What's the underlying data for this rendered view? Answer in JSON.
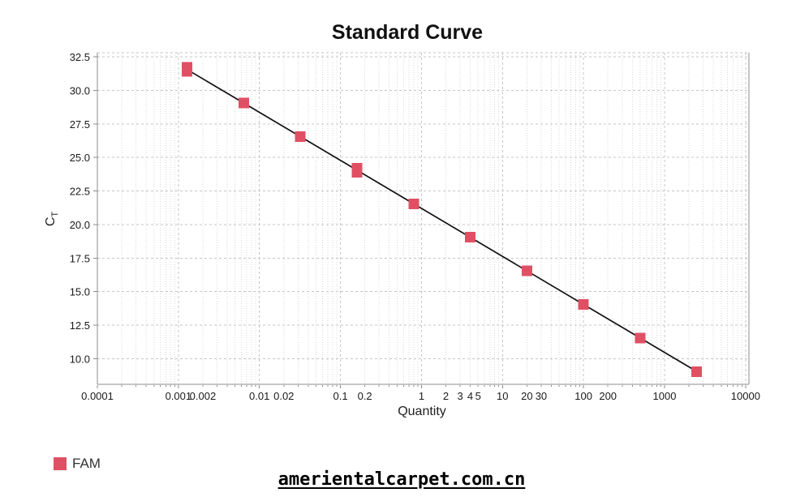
{
  "page": {
    "background": "#ffffff"
  },
  "chart": {
    "title": "Standard Curve",
    "x_axis_label": "Quantity",
    "y_axis_label_main": "C",
    "y_axis_label_sub": "T"
  },
  "legend": {
    "label": "FAM",
    "color": "#E05064"
  },
  "footer": {
    "watermark": "amerientalcarpet.com.cn"
  },
  "chart_data": {
    "type": "scatter",
    "title": "Standard Curve",
    "xlabel": "Quantity",
    "ylabel": "Ct",
    "x_scale": "log",
    "x_domain": [
      0.0001,
      11000
    ],
    "y_domain": [
      8.1,
      32.8
    ],
    "grid": true,
    "legend_position": "bottom-left",
    "y_ticks": [
      {
        "v": 32.5,
        "label": "32.5"
      },
      {
        "v": 30.0,
        "label": "30.0"
      },
      {
        "v": 27.5,
        "label": "27.5"
      },
      {
        "v": 25.0,
        "label": "25.0"
      },
      {
        "v": 22.5,
        "label": "22.5"
      },
      {
        "v": 20.0,
        "label": "20.0"
      },
      {
        "v": 17.5,
        "label": "17.5"
      },
      {
        "v": 15.0,
        "label": "15.0"
      },
      {
        "v": 12.5,
        "label": "12.5"
      },
      {
        "v": 10.0,
        "label": "10.0"
      }
    ],
    "x_ticks": [
      {
        "v": 0.0001,
        "label": "0.0001"
      },
      {
        "v": 0.001,
        "label": "0.001"
      },
      {
        "v": 0.002,
        "label": "0.002"
      },
      {
        "v": 0.01,
        "label": "0.01"
      },
      {
        "v": 0.02,
        "label": "0.02"
      },
      {
        "v": 0.1,
        "label": "0.1"
      },
      {
        "v": 0.2,
        "label": "0.2"
      },
      {
        "v": 1,
        "label": "1"
      },
      {
        "v": 2,
        "label": "2"
      },
      {
        "v": 3,
        "label": "3"
      },
      {
        "v": 4,
        "label": "4"
      },
      {
        "v": 5,
        "label": "5"
      },
      {
        "v": 10,
        "label": "10"
      },
      {
        "v": 20,
        "label": "20"
      },
      {
        "v": 30,
        "label": "30"
      },
      {
        "v": 100,
        "label": "100"
      },
      {
        "v": 200,
        "label": "200"
      },
      {
        "v": 1000,
        "label": "1000"
      },
      {
        "v": 10000,
        "label": "10000"
      }
    ],
    "series": [
      {
        "name": "FAM",
        "color": "#E05064",
        "marker": "square",
        "points": [
          {
            "quantity": 0.00128,
            "ct": [
              31.7,
              31.4
            ]
          },
          {
            "quantity": 0.0064,
            "ct": [
              29.05
            ]
          },
          {
            "quantity": 0.032,
            "ct": [
              26.55
            ]
          },
          {
            "quantity": 0.16,
            "ct": [
              24.2,
              23.9
            ]
          },
          {
            "quantity": 0.8,
            "ct": [
              21.55
            ]
          },
          {
            "quantity": 4,
            "ct": [
              19.05
            ]
          },
          {
            "quantity": 20,
            "ct": [
              16.55
            ]
          },
          {
            "quantity": 100,
            "ct": [
              14.05
            ]
          },
          {
            "quantity": 500,
            "ct": [
              11.55
            ]
          },
          {
            "quantity": 2500,
            "ct": [
              9.05
            ]
          }
        ]
      }
    ],
    "trendline": {
      "x1": 0.00128,
      "y1": 31.55,
      "x2": 2500,
      "y2": 9.05,
      "color": "#111111"
    },
    "colors": {
      "grid_major": "#c6c6c6",
      "grid_minor": "#d8d8d8",
      "axis": "#8c8c8c",
      "tick_text": "#1a1a1a"
    }
  }
}
